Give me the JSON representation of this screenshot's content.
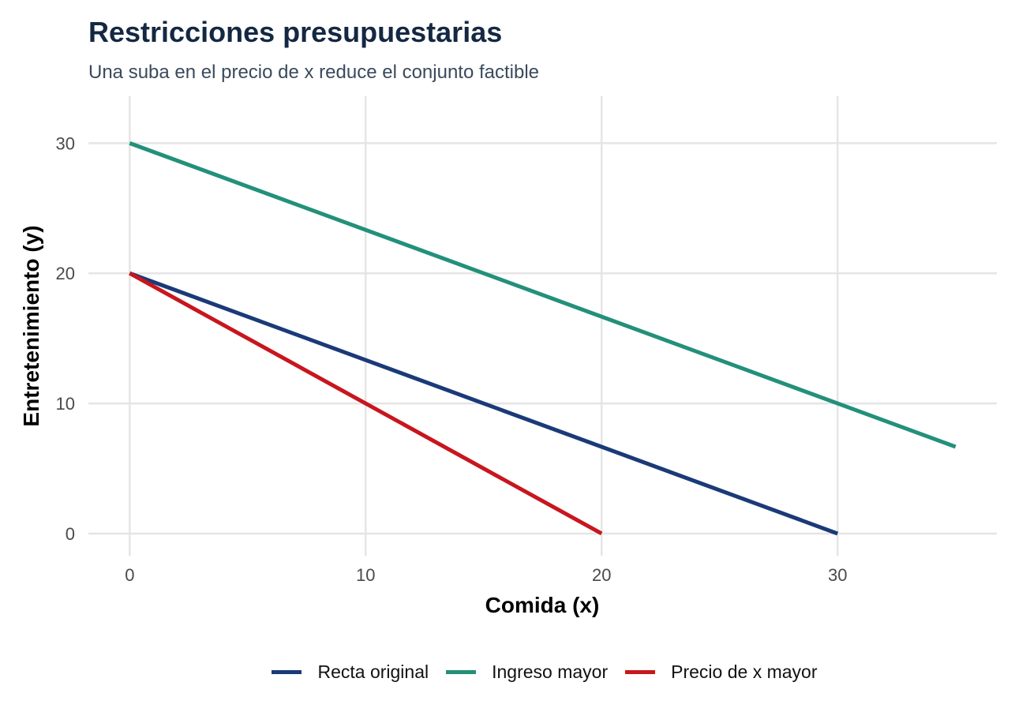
{
  "chart_data": {
    "type": "line",
    "title": "Restricciones presupuestarias",
    "subtitle": "Una suba en el precio de x reduce el conjunto factible",
    "xlabel": "Comida (x)",
    "ylabel": "Entretenimiento (y)",
    "xlim": [
      -1.75,
      36.75
    ],
    "ylim": [
      -1.7,
      33.6
    ],
    "xticks": [
      0,
      10,
      20,
      30
    ],
    "yticks": [
      0,
      10,
      20,
      30
    ],
    "grid": true,
    "legend_position": "bottom",
    "series": [
      {
        "name": "Recta original",
        "color": "#1a3a78",
        "x": [
          0,
          30
        ],
        "y": [
          20,
          0
        ]
      },
      {
        "name": "Ingreso mayor",
        "color": "#23907a",
        "x": [
          0,
          35
        ],
        "y": [
          30,
          6.67
        ]
      },
      {
        "name": "Precio de x mayor",
        "color": "#c8161e",
        "x": [
          0,
          20
        ],
        "y": [
          20,
          0
        ]
      }
    ]
  }
}
